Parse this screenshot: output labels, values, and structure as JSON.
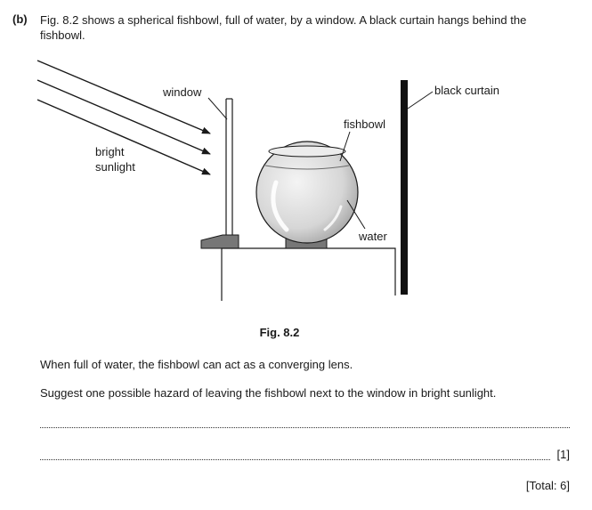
{
  "question": {
    "part_label": "(b)",
    "intro": "Fig. 8.2 shows a spherical fishbowl, full of water, by a window. A black curtain hangs behind the fishbowl."
  },
  "figure": {
    "labels": {
      "window": "window",
      "bright": "bright",
      "sunlight": "sunlight",
      "fishbowl": "fishbowl",
      "water": "water",
      "black_curtain": "black curtain"
    },
    "caption": "Fig. 8.2"
  },
  "body": {
    "statement": "When full of water, the fishbowl can act as a converging lens.",
    "task": "Suggest one possible hazard of leaving the fishbowl next to the window in bright sunlight."
  },
  "answer": {
    "line1_value": "",
    "line2_value": "",
    "marks": "[1]"
  },
  "total": "[Total: 6]"
}
